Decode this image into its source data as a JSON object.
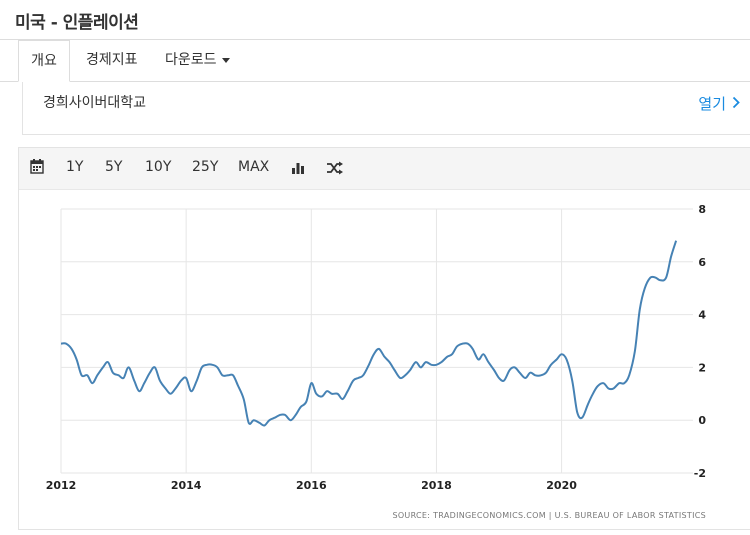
{
  "page": {
    "title": "미국 - 인플레이션"
  },
  "tabs": [
    {
      "label": "개요"
    },
    {
      "label": "경제지표"
    },
    {
      "label": "다운로드"
    }
  ],
  "school": {
    "name": "경희사이버대학교",
    "open_label": "열기"
  },
  "toolbar": {
    "range_buttons": [
      "1Y",
      "5Y",
      "10Y",
      "25Y",
      "MAX"
    ],
    "icons": [
      "calendar-icon",
      "bar-chart-icon",
      "shuffle-icon"
    ]
  },
  "colors": {
    "line": "#4682b4",
    "link": "#1a8be0",
    "grid": "#e6e6e6"
  },
  "source_text": "SOURCE: TRADINGECONOMICS.COM  |  U.S. BUREAU OF LABOR STATISTICS",
  "chart_data": {
    "type": "line",
    "title": "",
    "xlabel": "",
    "ylabel": "",
    "x_ticks": [
      "2012",
      "2014",
      "2016",
      "2018",
      "2020"
    ],
    "y_ticks": [
      "8",
      "6",
      "4",
      "2",
      "0",
      "-2"
    ],
    "ylim": [
      -2,
      8
    ],
    "xlim": [
      2012,
      2022.1
    ],
    "grid": true,
    "y_axis_position": "right",
    "series": [
      {
        "points": [
          [
            2012.0,
            2.9
          ],
          [
            2012.08,
            2.9
          ],
          [
            2012.17,
            2.7
          ],
          [
            2012.25,
            2.3
          ],
          [
            2012.33,
            1.7
          ],
          [
            2012.42,
            1.7
          ],
          [
            2012.5,
            1.4
          ],
          [
            2012.58,
            1.7
          ],
          [
            2012.67,
            2.0
          ],
          [
            2012.75,
            2.2
          ],
          [
            2012.83,
            1.8
          ],
          [
            2012.92,
            1.7
          ],
          [
            2013.0,
            1.6
          ],
          [
            2013.08,
            2.0
          ],
          [
            2013.17,
            1.5
          ],
          [
            2013.25,
            1.1
          ],
          [
            2013.33,
            1.4
          ],
          [
            2013.42,
            1.8
          ],
          [
            2013.5,
            2.0
          ],
          [
            2013.58,
            1.5
          ],
          [
            2013.67,
            1.2
          ],
          [
            2013.75,
            1.0
          ],
          [
            2013.83,
            1.2
          ],
          [
            2013.92,
            1.5
          ],
          [
            2014.0,
            1.6
          ],
          [
            2014.08,
            1.1
          ],
          [
            2014.17,
            1.5
          ],
          [
            2014.25,
            2.0
          ],
          [
            2014.33,
            2.1
          ],
          [
            2014.42,
            2.1
          ],
          [
            2014.5,
            2.0
          ],
          [
            2014.58,
            1.7
          ],
          [
            2014.67,
            1.7
          ],
          [
            2014.75,
            1.7
          ],
          [
            2014.83,
            1.3
          ],
          [
            2014.92,
            0.8
          ],
          [
            2015.0,
            -0.1
          ],
          [
            2015.08,
            0.0
          ],
          [
            2015.17,
            -0.1
          ],
          [
            2015.25,
            -0.2
          ],
          [
            2015.33,
            0.0
          ],
          [
            2015.42,
            0.1
          ],
          [
            2015.5,
            0.2
          ],
          [
            2015.58,
            0.2
          ],
          [
            2015.67,
            0.0
          ],
          [
            2015.75,
            0.2
          ],
          [
            2015.83,
            0.5
          ],
          [
            2015.92,
            0.7
          ],
          [
            2016.0,
            1.4
          ],
          [
            2016.08,
            1.0
          ],
          [
            2016.17,
            0.9
          ],
          [
            2016.25,
            1.1
          ],
          [
            2016.33,
            1.0
          ],
          [
            2016.42,
            1.0
          ],
          [
            2016.5,
            0.8
          ],
          [
            2016.58,
            1.1
          ],
          [
            2016.67,
            1.5
          ],
          [
            2016.75,
            1.6
          ],
          [
            2016.83,
            1.7
          ],
          [
            2016.92,
            2.1
          ],
          [
            2017.0,
            2.5
          ],
          [
            2017.08,
            2.7
          ],
          [
            2017.17,
            2.4
          ],
          [
            2017.25,
            2.2
          ],
          [
            2017.33,
            1.9
          ],
          [
            2017.42,
            1.6
          ],
          [
            2017.5,
            1.7
          ],
          [
            2017.58,
            1.9
          ],
          [
            2017.67,
            2.2
          ],
          [
            2017.75,
            2.0
          ],
          [
            2017.83,
            2.2
          ],
          [
            2017.92,
            2.1
          ],
          [
            2018.0,
            2.1
          ],
          [
            2018.08,
            2.2
          ],
          [
            2018.17,
            2.4
          ],
          [
            2018.25,
            2.5
          ],
          [
            2018.33,
            2.8
          ],
          [
            2018.42,
            2.9
          ],
          [
            2018.5,
            2.9
          ],
          [
            2018.58,
            2.7
          ],
          [
            2018.67,
            2.3
          ],
          [
            2018.75,
            2.5
          ],
          [
            2018.83,
            2.2
          ],
          [
            2018.92,
            1.9
          ],
          [
            2019.0,
            1.6
          ],
          [
            2019.08,
            1.5
          ],
          [
            2019.17,
            1.9
          ],
          [
            2019.25,
            2.0
          ],
          [
            2019.33,
            1.8
          ],
          [
            2019.42,
            1.6
          ],
          [
            2019.5,
            1.8
          ],
          [
            2019.58,
            1.7
          ],
          [
            2019.67,
            1.7
          ],
          [
            2019.75,
            1.8
          ],
          [
            2019.83,
            2.1
          ],
          [
            2019.92,
            2.3
          ],
          [
            2020.0,
            2.5
          ],
          [
            2020.08,
            2.3
          ],
          [
            2020.17,
            1.5
          ],
          [
            2020.25,
            0.3
          ],
          [
            2020.33,
            0.1
          ],
          [
            2020.42,
            0.6
          ],
          [
            2020.5,
            1.0
          ],
          [
            2020.58,
            1.3
          ],
          [
            2020.67,
            1.4
          ],
          [
            2020.75,
            1.2
          ],
          [
            2020.83,
            1.2
          ],
          [
            2020.92,
            1.4
          ],
          [
            2021.0,
            1.4
          ],
          [
            2021.08,
            1.7
          ],
          [
            2021.17,
            2.6
          ],
          [
            2021.25,
            4.2
          ],
          [
            2021.33,
            5.0
          ],
          [
            2021.42,
            5.4
          ],
          [
            2021.5,
            5.4
          ],
          [
            2021.58,
            5.3
          ],
          [
            2021.67,
            5.4
          ],
          [
            2021.75,
            6.2
          ],
          [
            2021.83,
            6.8
          ]
        ]
      }
    ]
  }
}
